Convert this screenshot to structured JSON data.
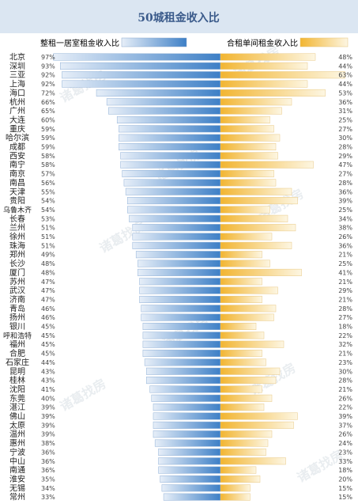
{
  "chart_data": {
    "type": "bar",
    "title": "50城租金收入比",
    "legend": {
      "left": "整租一居室租金收入比",
      "right": "合租单间租金收入比"
    },
    "watermark": "诸葛找房",
    "colors": {
      "header_bg": "#dbe6f2",
      "title": "#3a5a8a",
      "blue_dark": "#3d7fc6",
      "blue_light": "#e6eef8",
      "orange_dark": "#f2b531",
      "orange_light": "#fdf6e2",
      "text": "#222222"
    },
    "categories": [
      "北京",
      "深圳",
      "三亚",
      "上海",
      "海口",
      "杭州",
      "广州",
      "大连",
      "重庆",
      "哈尔滨",
      "成都",
      "西安",
      "南宁",
      "南京",
      "南昌",
      "天津",
      "贵阳",
      "乌鲁木齐",
      "长春",
      "兰州",
      "徐州",
      "珠海",
      "郑州",
      "长沙",
      "厦门",
      "苏州",
      "武汉",
      "济南",
      "青岛",
      "扬州",
      "银川",
      "呼和浩特",
      "福州",
      "合肥",
      "石家庄",
      "昆明",
      "桂林",
      "沈阳",
      "东莞",
      "湛江",
      "佛山",
      "太原",
      "温州",
      "惠州",
      "宁波",
      "中山",
      "南通",
      "淮安",
      "无锡",
      "常州"
    ],
    "series": [
      {
        "name": "整租一居室租金收入比",
        "values": [
          97,
          93,
          92,
          92,
          72,
          66,
          65,
          60,
          59,
          59,
          59,
          58,
          58,
          57,
          56,
          55,
          54,
          54,
          53,
          51,
          51,
          51,
          49,
          48,
          48,
          47,
          47,
          47,
          46,
          46,
          45,
          45,
          45,
          45,
          44,
          43,
          43,
          41,
          40,
          39,
          39,
          39,
          39,
          38,
          36,
          36,
          36,
          35,
          34,
          33
        ]
      },
      {
        "name": "合租单间租金收入比",
        "values": [
          48,
          44,
          63,
          44,
          53,
          36,
          31,
          25,
          27,
          30,
          28,
          29,
          47,
          27,
          28,
          36,
          39,
          25,
          34,
          38,
          26,
          36,
          21,
          25,
          41,
          21,
          29,
          21,
          28,
          27,
          18,
          22,
          32,
          21,
          23,
          30,
          28,
          21,
          26,
          22,
          39,
          37,
          26,
          24,
          23,
          33,
          18,
          20,
          15,
          15
        ]
      }
    ],
    "xlim": [
      0,
      100
    ],
    "value_suffix": "%"
  }
}
